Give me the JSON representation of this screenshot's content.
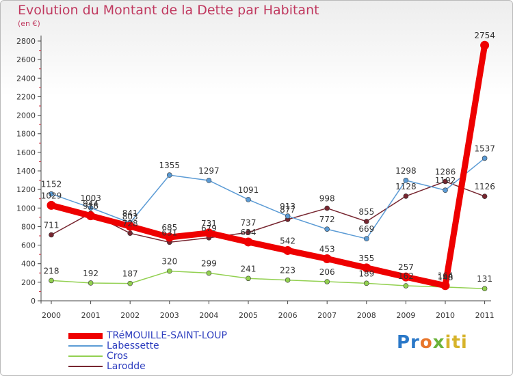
{
  "title": "Evolution du Montant de la Dette par Habitant",
  "subtitle": "(en €)",
  "logo": [
    "Pr",
    "o",
    "x",
    "iti"
  ],
  "chart_data": {
    "type": "line",
    "x": [
      "2000",
      "2001",
      "2002",
      "2003",
      "2004",
      "2005",
      "2006",
      "2007",
      "2008",
      "2009",
      "2010",
      "2011"
    ],
    "ylim": [
      0,
      2800
    ],
    "yticks": [
      0,
      200,
      400,
      600,
      800,
      1000,
      1200,
      1400,
      1600,
      1800,
      2000,
      2200,
      2400,
      2600,
      2800
    ],
    "grid": false,
    "legend_position": "bottom-left",
    "series": [
      {
        "name": "TRéMOUILLE-SAINT-LOUP",
        "color": "#ee0000",
        "values": [
          1029,
          916,
          803,
          685,
          731,
          634,
          542,
          453,
          355,
          257,
          164,
          2754
        ]
      },
      {
        "name": "Labessette",
        "color": "#5b9bd5",
        "values": [
          1152,
          1003,
          841,
          1355,
          1297,
          1091,
          913,
          772,
          669,
          1298,
          1192,
          1537
        ]
      },
      {
        "name": "Cros",
        "color": "#92d050",
        "values": [
          218,
          192,
          187,
          320,
          299,
          241,
          223,
          206,
          189,
          162,
          148,
          131
        ]
      },
      {
        "name": "Larodde",
        "color": "#772630",
        "values": [
          711,
          944,
          728,
          631,
          679,
          737,
          877,
          998,
          855,
          1128,
          1286,
          1126
        ]
      }
    ]
  }
}
